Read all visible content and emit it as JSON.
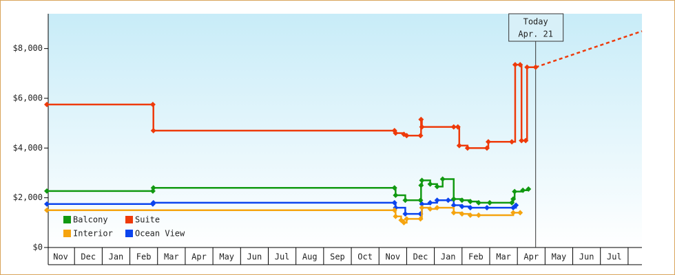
{
  "chart_data": {
    "type": "step",
    "xlim": [
      0,
      21.5
    ],
    "xticks": [
      {
        "value": 0.5,
        "label": "Nov"
      },
      {
        "value": 1.5,
        "label": "Dec"
      },
      {
        "value": 2.5,
        "label": "Jan"
      },
      {
        "value": 3.5,
        "label": "Feb"
      },
      {
        "value": 4.5,
        "label": "Mar"
      },
      {
        "value": 5.5,
        "label": "Apr"
      },
      {
        "value": 6.5,
        "label": "May"
      },
      {
        "value": 7.5,
        "label": "Jun"
      },
      {
        "value": 8.5,
        "label": "Jul"
      },
      {
        "value": 9.5,
        "label": "Aug"
      },
      {
        "value": 10.5,
        "label": "Sep"
      },
      {
        "value": 11.5,
        "label": "Oct"
      },
      {
        "value": 12.5,
        "label": "Nov"
      },
      {
        "value": 13.5,
        "label": "Dec"
      },
      {
        "value": 14.5,
        "label": "Jan"
      },
      {
        "value": 15.5,
        "label": "Feb"
      },
      {
        "value": 16.5,
        "label": "Mar"
      },
      {
        "value": 17.5,
        "label": "Apr"
      },
      {
        "value": 18.5,
        "label": "May"
      },
      {
        "value": 19.5,
        "label": "Jun"
      },
      {
        "value": 20.5,
        "label": "Jul"
      }
    ],
    "ylim": [
      0,
      9400
    ],
    "yticks": [
      {
        "value": 0,
        "label": "$0"
      },
      {
        "value": 2000,
        "label": "$2,000"
      },
      {
        "value": 4000,
        "label": "$4,000"
      },
      {
        "value": 6000,
        "label": "$6,000"
      },
      {
        "value": 8000,
        "label": "$8,000"
      }
    ],
    "legend": "lower left",
    "series": [
      {
        "name": "Suite",
        "color": "#ee3a0a",
        "x": [
          0,
          3.83,
          3.85,
          12.56,
          12.6,
          12.9,
          13.0,
          13.5,
          13.52,
          13.55,
          14.7,
          14.85,
          14.9,
          15.2,
          15.9,
          15.95,
          16.8,
          16.92,
          17.1,
          17.15,
          17.3,
          17.35,
          17.66
        ],
        "values": [
          5750,
          5750,
          4700,
          4700,
          4600,
          4550,
          4500,
          4500,
          5150,
          4850,
          4850,
          4850,
          4100,
          4000,
          4000,
          4250,
          4250,
          7350,
          7350,
          4300,
          4300,
          7250,
          7250
        ]
      },
      {
        "name": "Balcony",
        "color": "#119911",
        "x": [
          0,
          3.83,
          3.85,
          12.56,
          12.6,
          12.95,
          13.5,
          13.52,
          13.55,
          13.85,
          14.1,
          14.3,
          14.7,
          15.0,
          15.3,
          15.6,
          16.0,
          16.8,
          16.85,
          16.9,
          17.2,
          17.4
        ],
        "values": [
          2270,
          2270,
          2400,
          2400,
          2100,
          1900,
          1900,
          2500,
          2700,
          2550,
          2450,
          2750,
          1950,
          1900,
          1850,
          1800,
          1800,
          1800,
          1950,
          2250,
          2300,
          2350
        ]
      },
      {
        "name": "Interior",
        "color": "#f5a40f",
        "x": [
          0,
          12.56,
          12.6,
          12.8,
          12.9,
          13.0,
          13.5,
          13.55,
          13.85,
          14.1,
          14.7,
          15.0,
          15.3,
          15.6,
          16.85,
          17.1
        ],
        "values": [
          1500,
          1500,
          1250,
          1100,
          1000,
          1150,
          1150,
          1600,
          1550,
          1600,
          1400,
          1350,
          1300,
          1300,
          1400,
          1400
        ]
      },
      {
        "name": "Ocean View",
        "color": "#0b44ee",
        "x": [
          0,
          3.83,
          3.85,
          12.56,
          12.6,
          12.95,
          13.5,
          13.55,
          13.85,
          14.1,
          14.5,
          14.7,
          15.0,
          15.3,
          15.9,
          16.85,
          16.95
        ],
        "values": [
          1750,
          1750,
          1800,
          1800,
          1600,
          1350,
          1350,
          1750,
          1800,
          1900,
          1900,
          1700,
          1650,
          1600,
          1600,
          1600,
          1700
        ]
      }
    ],
    "projection": {
      "color": "#ee3a0a",
      "x": [
        17.66,
        21.5
      ],
      "values": [
        7250,
        8700
      ]
    },
    "annotation": {
      "x": 17.66,
      "lines": [
        "Today",
        "Apr. 21"
      ]
    }
  }
}
